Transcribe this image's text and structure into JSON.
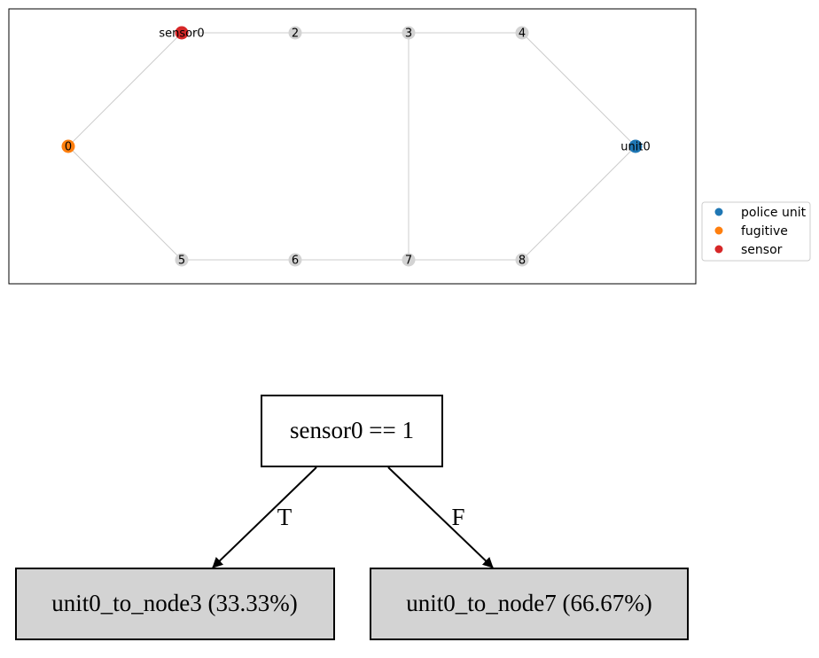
{
  "graph": {
    "nodes": [
      {
        "id": "sensor0",
        "label": "sensor0",
        "role": "sensor"
      },
      {
        "id": "2",
        "label": "2",
        "role": "none"
      },
      {
        "id": "3",
        "label": "3",
        "role": "none"
      },
      {
        "id": "4",
        "label": "4",
        "role": "none"
      },
      {
        "id": "0",
        "label": "0",
        "role": "fugitive"
      },
      {
        "id": "unit0",
        "label": "unit0",
        "role": "police"
      },
      {
        "id": "5",
        "label": "5",
        "role": "none"
      },
      {
        "id": "6",
        "label": "6",
        "role": "none"
      },
      {
        "id": "7",
        "label": "7",
        "role": "none"
      },
      {
        "id": "8",
        "label": "8",
        "role": "none"
      }
    ],
    "edges": [
      [
        "0",
        "sensor0"
      ],
      [
        "sensor0",
        "2"
      ],
      [
        "2",
        "3"
      ],
      [
        "3",
        "4"
      ],
      [
        "4",
        "unit0"
      ],
      [
        "0",
        "5"
      ],
      [
        "5",
        "6"
      ],
      [
        "6",
        "7"
      ],
      [
        "7",
        "8"
      ],
      [
        "8",
        "unit0"
      ],
      [
        "3",
        "7"
      ]
    ],
    "colors": {
      "police": "#1f77b4",
      "fugitive": "#ff7f0e",
      "sensor": "#d62728",
      "none": "#d3d3d3",
      "edge": "#cccccc"
    },
    "legend": [
      {
        "label": "police unit",
        "role": "police"
      },
      {
        "label": "fugitive",
        "role": "fugitive"
      },
      {
        "label": "sensor",
        "role": "sensor"
      }
    ]
  },
  "tree": {
    "root": {
      "label": "sensor0 == 1"
    },
    "true_label": "T",
    "false_label": "F",
    "leaves": [
      {
        "label": "unit0_to_node3 (33.33%)"
      },
      {
        "label": "unit0_to_node7 (66.67%)"
      }
    ],
    "colors": {
      "leaf_fill": "#d3d3d3",
      "root_fill": "#ffffff",
      "stroke": "#000000"
    }
  }
}
